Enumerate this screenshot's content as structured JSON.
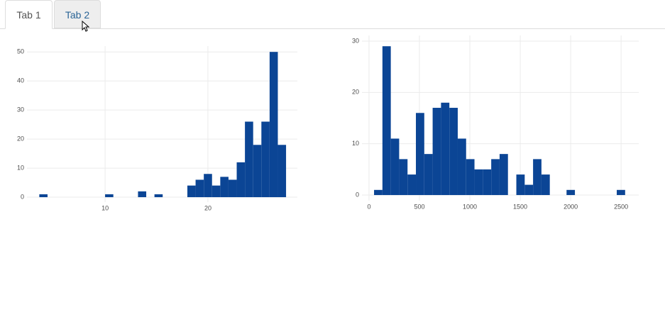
{
  "tabs": [
    "Tab 1",
    "Tab 2"
  ],
  "chart_data": [
    {
      "type": "histogram",
      "color": "#0b4595",
      "grid": true,
      "bins": [
        3.6,
        4.4,
        5.2,
        6,
        6.8,
        7.6,
        8.4,
        9.2,
        10,
        10.8,
        11.6,
        12.4,
        13.2,
        14,
        14.8,
        15.6,
        16.4,
        17.2,
        18,
        18.8,
        19.6,
        20.4,
        21.2,
        22,
        22.8,
        23.6,
        24.4,
        25.2,
        26,
        26.8,
        27.6
      ],
      "values": [
        1,
        0,
        0,
        0,
        0,
        0,
        0,
        0,
        1,
        0,
        0,
        0,
        2,
        0,
        1,
        0,
        0,
        0,
        4,
        6,
        8,
        4,
        7,
        6,
        12,
        26,
        18,
        26,
        50,
        18
      ],
      "xlim": [
        2.4,
        28.7
      ],
      "xticks": [
        10,
        20
      ],
      "ylim": [
        -1.7,
        52
      ],
      "yticks": [
        0,
        10,
        20,
        30,
        40,
        50
      ]
    },
    {
      "type": "histogram",
      "color": "#0b4595",
      "grid": true,
      "bins": [
        50,
        133,
        216,
        299,
        382,
        465,
        548,
        631,
        714,
        797,
        880,
        963,
        1046,
        1129,
        1212,
        1295,
        1378,
        1461,
        1544,
        1627,
        1710,
        1793,
        1876,
        1959,
        2042,
        2125,
        2208,
        2291,
        2374,
        2457,
        2540
      ],
      "values": [
        1,
        29,
        11,
        7,
        4,
        16,
        8,
        17,
        18,
        17,
        11,
        7,
        5,
        5,
        7,
        8,
        0,
        4,
        2,
        7,
        4,
        0,
        0,
        1,
        0,
        0,
        0,
        0,
        0,
        1
      ],
      "xlim": [
        -70,
        2675
      ],
      "xticks": [
        0,
        500,
        1000,
        1500,
        2000,
        2500
      ],
      "ylim": [
        -1.1,
        31.1
      ],
      "yticks": [
        0,
        10,
        20,
        30
      ]
    }
  ]
}
